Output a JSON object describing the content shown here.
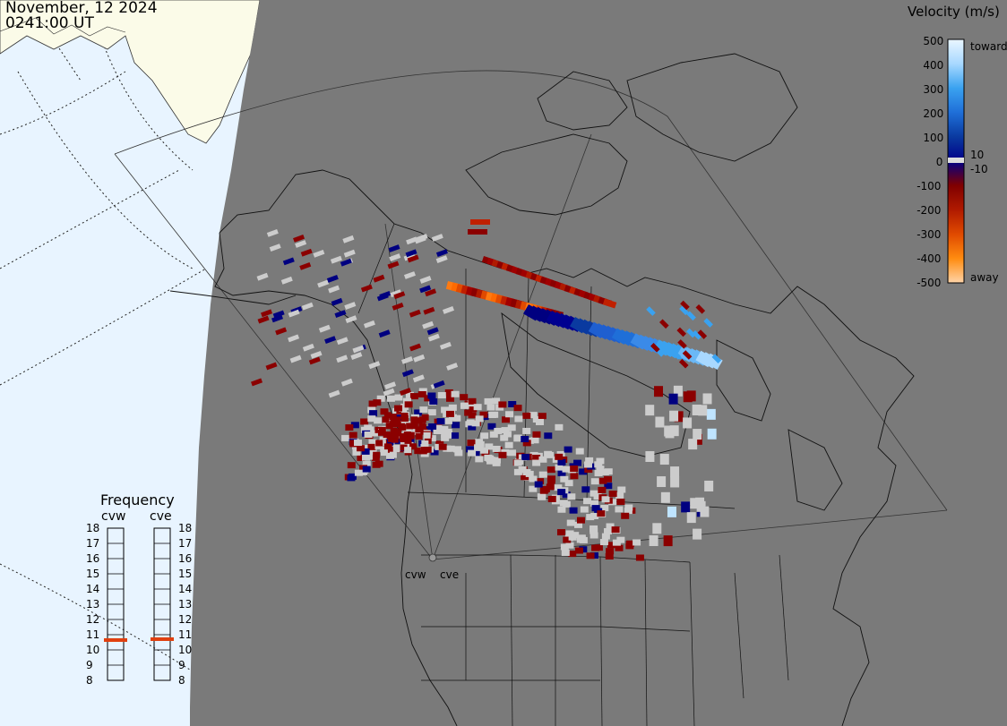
{
  "header": {
    "date": "November, 12 2024",
    "time": "0241:00 UT"
  },
  "colors": {
    "ocean": "#e8f4ff",
    "land_outside": "#fbfbe8",
    "fov_fill": "#7a7a7a",
    "ground_scatter": "#cccccc",
    "frequency_marker": "#e04010"
  },
  "velocity_scale": {
    "title": "Velocity (m/s)",
    "ticks": [
      "500",
      "400",
      "300",
      "200",
      "100",
      "0",
      "-100",
      "-200",
      "-300",
      "-400",
      "-500"
    ],
    "extra_ticks": [
      "10",
      "-10"
    ],
    "toward_label": "toward",
    "away_label": "away",
    "gradient": [
      "#eaf6ff",
      "#a8d8ff",
      "#3aa2f0",
      "#1f6fd8",
      "#0a3aa0",
      "#000088",
      "#800000",
      "#b01a00",
      "#e04a00",
      "#ff8c10",
      "#ffd4a8"
    ]
  },
  "frequency": {
    "title": "Frequency",
    "radars": [
      {
        "name": "cvw",
        "value": 10.5
      },
      {
        "name": "cve",
        "value": 10.6
      }
    ],
    "ticks": [
      "18",
      "17",
      "16",
      "15",
      "14",
      "13",
      "12",
      "11",
      "10",
      "9",
      "8"
    ]
  },
  "sites": [
    {
      "name": "cvw"
    },
    {
      "name": "cve"
    }
  ]
}
